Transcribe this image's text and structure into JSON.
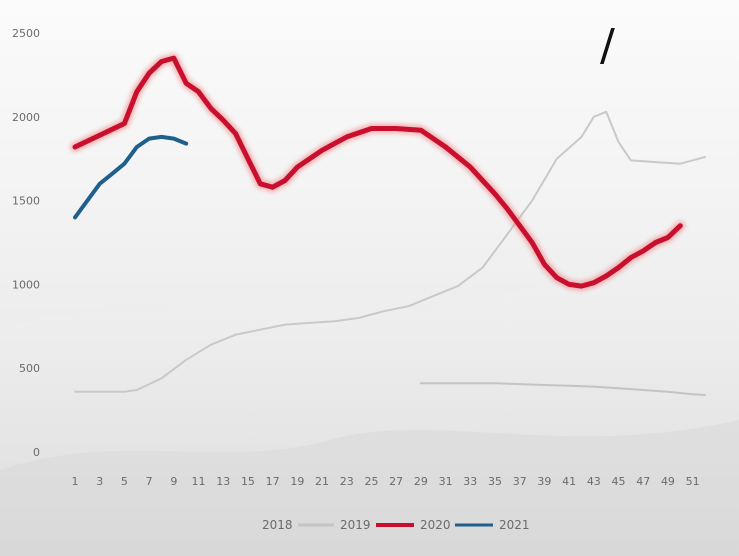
{
  "corner_mark": "/",
  "chart_data": {
    "type": "line",
    "title": "",
    "xlabel": "",
    "ylabel": "",
    "ylim": [
      0,
      2500
    ],
    "xlim": [
      1,
      52
    ],
    "y_ticks": [
      0,
      500,
      1000,
      1500,
      2000,
      2500
    ],
    "y_tick_labels": [
      "0",
      "500",
      "1000",
      "1500",
      "2000",
      "2500"
    ],
    "x_ticks": [
      1,
      3,
      5,
      7,
      9,
      11,
      13,
      15,
      17,
      19,
      21,
      23,
      25,
      27,
      29,
      31,
      33,
      35,
      37,
      39,
      41,
      43,
      45,
      47,
      49,
      51
    ],
    "x_tick_labels": [
      "1",
      "3",
      "5",
      "7",
      "9",
      "11",
      "13",
      "15",
      "17",
      "19",
      "21",
      "23",
      "25",
      "27",
      "29",
      "31",
      "33",
      "35",
      "37",
      "39",
      "41",
      "43",
      "45",
      "47",
      "49",
      "51"
    ],
    "grid": false,
    "legend": "bottom",
    "series": [
      {
        "name": "2018",
        "color": "#c9c9c9",
        "width": 2,
        "x": [
          1,
          5,
          6,
          8,
          10,
          12,
          14,
          16,
          18,
          20,
          22,
          24,
          26,
          28,
          30,
          32,
          34,
          36,
          38,
          40,
          42,
          43,
          44,
          45,
          46,
          48,
          50,
          52
        ],
        "y": [
          360,
          360,
          370,
          440,
          550,
          640,
          700,
          730,
          760,
          770,
          780,
          800,
          840,
          870,
          930,
          990,
          1100,
          1300,
          1500,
          1750,
          1880,
          2000,
          2030,
          1850,
          1740,
          1730,
          1720,
          1760
        ]
      },
      {
        "name": "2019",
        "color": "#c4c4c4",
        "width": 2,
        "x": [
          29,
          31,
          33,
          35,
          37,
          39,
          41,
          43,
          45,
          47,
          49,
          51,
          52
        ],
        "y": [
          410,
          410,
          410,
          410,
          405,
          400,
          395,
          390,
          380,
          370,
          360,
          345,
          340
        ]
      },
      {
        "name": "2020",
        "color": "#c8102e",
        "width": 5,
        "x": [
          1,
          3,
          5,
          6,
          7,
          8,
          9,
          10,
          11,
          12,
          13,
          14,
          15,
          16,
          17,
          18,
          19,
          20,
          21,
          22,
          23,
          25,
          27,
          29,
          30,
          31,
          32,
          33,
          34,
          35,
          36,
          37,
          38,
          39,
          40,
          41,
          42,
          43,
          44,
          45,
          46,
          47,
          48,
          49,
          50
        ],
        "y": [
          1820,
          1890,
          1960,
          2150,
          2260,
          2330,
          2350,
          2200,
          2150,
          2050,
          1980,
          1900,
          1750,
          1600,
          1580,
          1620,
          1700,
          1750,
          1800,
          1840,
          1880,
          1930,
          1930,
          1920,
          1870,
          1820,
          1760,
          1700,
          1620,
          1540,
          1450,
          1350,
          1250,
          1120,
          1040,
          1000,
          990,
          1010,
          1050,
          1100,
          1160,
          1200,
          1250,
          1280,
          1350
        ]
      },
      {
        "name": "2021",
        "color": "#1f5f8b",
        "width": 4,
        "x": [
          1,
          2,
          3,
          4,
          5,
          6,
          7,
          8,
          9,
          10
        ],
        "y": [
          1400,
          1500,
          1600,
          1660,
          1720,
          1820,
          1870,
          1880,
          1870,
          1840
        ]
      }
    ]
  }
}
